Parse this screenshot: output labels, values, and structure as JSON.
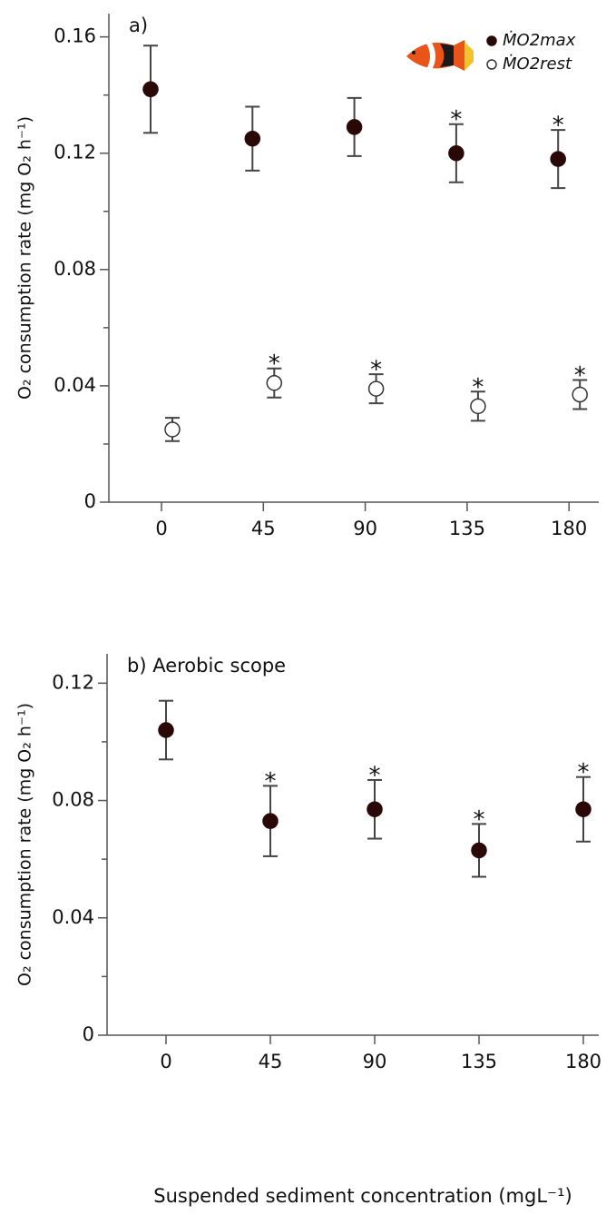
{
  "chart_data": [
    {
      "type": "scatter",
      "title": "a)",
      "y_label": "O₂ consumption rate (mg O₂ h⁻¹)",
      "categories": [
        "0",
        "45",
        "90",
        "135",
        "180"
      ],
      "ylim": [
        0,
        0.168
      ],
      "yticks": [
        0,
        0.04,
        0.08,
        0.12,
        0.16
      ],
      "yminor_ticks": [
        0.02,
        0.06,
        0.1,
        0.14
      ],
      "legend": "top-right",
      "series": [
        {
          "name": "ṀO2max",
          "color": "#2a0808",
          "marker": "filled",
          "values": [
            0.142,
            0.125,
            0.129,
            0.12,
            0.118
          ],
          "errors": [
            0.015,
            0.011,
            0.01,
            0.01,
            0.01
          ],
          "significance": [
            null,
            null,
            null,
            "*",
            "*"
          ]
        },
        {
          "name": "ṀO2rest",
          "color": "#ffffff",
          "marker": "open",
          "values": [
            0.025,
            0.041,
            0.039,
            0.033,
            0.037
          ],
          "errors": [
            0.004,
            0.005,
            0.005,
            0.005,
            0.005
          ],
          "significance": [
            null,
            "*",
            "*",
            "*",
            "*"
          ]
        }
      ]
    },
    {
      "type": "scatter",
      "title": "b) Aerobic scope",
      "y_label": "O₂ consumption rate (mg O₂ h⁻¹)",
      "x_label": "Suspended sediment concentration (mgL⁻¹)",
      "categories": [
        "0",
        "45",
        "90",
        "135",
        "180"
      ],
      "ylim": [
        0,
        0.13
      ],
      "yticks": [
        0,
        0.04,
        0.08,
        0.12
      ],
      "yminor_ticks": [
        0.02,
        0.06,
        0.1
      ],
      "series": [
        {
          "color": "#2a0808",
          "marker": "filled",
          "values": [
            0.104,
            0.073,
            0.077,
            0.063,
            0.077
          ],
          "errors": [
            0.01,
            0.012,
            0.01,
            0.009,
            0.011
          ],
          "significance": [
            null,
            "*",
            "*",
            "*",
            "*"
          ]
        }
      ]
    }
  ]
}
